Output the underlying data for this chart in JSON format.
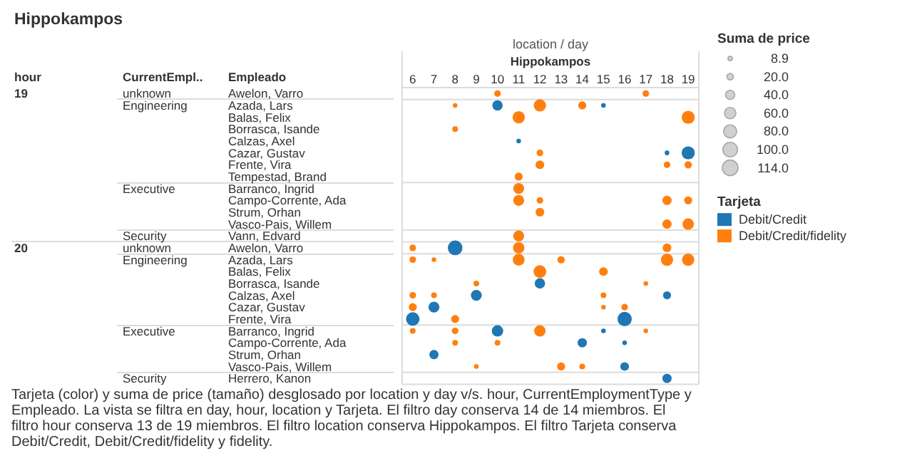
{
  "chart_data": {
    "type": "bubble",
    "orientation": "horizontal",
    "title": "Hippokampos",
    "xlabel": "location / day",
    "ylabel": "Empleado",
    "categories": [
      "Awelon, Varro",
      "Azada, Lars",
      "Balas, Felix",
      "Borrasca, Isande",
      "Calzas, Axel",
      "Cazar, Gustav",
      "Frente, Vira",
      "Tempestad, Brand",
      "Barranco, Ingrid",
      "Campo-Corrente, Ada",
      "Strum, Orhan",
      "Vasco-Pais, Willem",
      "Vann, Edvard",
      "Awelon, Varro",
      "Azada, Lars",
      "Balas, Felix",
      "Borrasca, Isande",
      "Calzas, Axel",
      "Cazar, Gustav",
      "Frente, Vira",
      "Barranco, Ingrid",
      "Campo-Corrente, Ada",
      "Strum, Orhan",
      "Vasco-Pais, Willem",
      "Herrero, Kanon"
    ],
    "y_categories": [
      "19",
      null,
      null,
      null,
      null,
      null,
      null,
      null,
      null,
      null,
      null,
      null,
      null,
      "20",
      null,
      null,
      null,
      null,
      null,
      null,
      null,
      null,
      null,
      null,
      null
    ],
    "y2_categories": [
      "unknown",
      "Engineering",
      null,
      null,
      null,
      null,
      null,
      null,
      "Executive",
      null,
      null,
      null,
      "Security",
      "unknown",
      "Engineering",
      null,
      null,
      null,
      null,
      null,
      "Executive",
      null,
      null,
      null,
      "Security"
    ],
    "xlim": [
      5.5,
      19.5
    ],
    "xticks": [
      6,
      7,
      8,
      9,
      10,
      11,
      12,
      13,
      14,
      15,
      16,
      17,
      18,
      19
    ],
    "legend": "right",
    "legend_title": "Tarjeta",
    "size_legend": [
      8.9,
      {
        "value": 20,
        "label": "20.0"
      },
      {
        "value": 40,
        "label": "40.0"
      },
      {
        "value": 60,
        "label": "60.0"
      },
      {
        "value": 80,
        "label": "80.0"
      },
      {
        "value": 100,
        "label": "100.0"
      },
      {
        "value": 114,
        "label": "114.0"
      }
    ],
    "annotations": [
      "hour",
      "CurrentEmpl..",
      "Hippokampos",
      "Suma de price",
      "Tarjeta (color) y suma de price (tamaño) desglosado por location y day v/s. hour, CurrentEmploymentType y Empleado. La vista se filtra en day, hour, location y Tarjeta. El filtro day conserva 14 de 14 miembros. El filtro hour conserva 13 de 19 miembros. El filtro location conserva Hippokampos. El filtro Tarjeta conserva Debit/Credit, Debit/Credit/fidelity y fidelity."
    ],
    "series": [
      {
        "name": "Debit/Credit",
        "color": "#1f77b4",
        "values": [
          null,
          10,
          null,
          null,
          11,
          18,
          null,
          null,
          null,
          null,
          null,
          null,
          null,
          8,
          null,
          null,
          12,
          9,
          7,
          6,
          10,
          14,
          7,
          16,
          18
        ],
        "sizes": [
          null,
          50,
          null,
          null,
          10,
          10,
          null,
          null,
          null,
          null,
          null,
          null,
          null,
          100,
          null,
          null,
          50,
          55,
          55,
          85,
          60,
          40,
          40,
          35,
          40
        ]
      },
      {
        "name": "Debit/Credit/fidelity",
        "color": "#ff7f0e",
        "values": [
          10,
          8,
          11,
          8,
          null,
          12,
          12,
          11,
          11,
          11,
          12,
          18,
          11,
          6,
          6,
          12,
          9,
          6,
          6,
          8,
          6,
          8,
          null,
          9,
          null
        ],
        "sizes": [
          20,
          10,
          70,
          15,
          null,
          20,
          35,
          30,
          55,
          55,
          35,
          40,
          55,
          20,
          20,
          75,
          15,
          20,
          30,
          30,
          15,
          15,
          null,
          10,
          null
        ]
      },
      {
        "color": "#1f77b4",
        "values": [
          null,
          15,
          null,
          null,
          null,
          19,
          null,
          null,
          null,
          null,
          null,
          null,
          null,
          null,
          null,
          null,
          null,
          18,
          null,
          16,
          15,
          16,
          null,
          null,
          null
        ],
        "sizes": [
          null,
          10,
          null,
          null,
          null,
          80,
          null,
          null,
          null,
          null,
          null,
          null,
          null,
          null,
          null,
          null,
          null,
          30,
          null,
          95,
          10,
          10,
          null,
          null,
          null
        ]
      },
      {
        "color": "#ff7f0e",
        "values": [
          17,
          12,
          19,
          null,
          null,
          null,
          18,
          null,
          null,
          12,
          null,
          19,
          null,
          11,
          7,
          15,
          17,
          7,
          15,
          null,
          8,
          10,
          null,
          13,
          null
        ],
        "sizes": [
          20,
          70,
          80,
          null,
          null,
          null,
          20,
          null,
          null,
          20,
          null,
          60,
          null,
          60,
          10,
          35,
          10,
          15,
          10,
          null,
          20,
          15,
          null,
          30,
          null
        ]
      },
      {
        "color": "#ff7f0e",
        "values": [
          null,
          14,
          null,
          null,
          null,
          null,
          19,
          null,
          null,
          18,
          null,
          null,
          null,
          18,
          11,
          null,
          null,
          15,
          16,
          null,
          12,
          null,
          null,
          14,
          null
        ],
        "sizes": [
          null,
          30,
          null,
          null,
          null,
          null,
          25,
          null,
          null,
          40,
          null,
          null,
          null,
          35,
          65,
          null,
          null,
          15,
          20,
          null,
          60,
          null,
          null,
          15,
          null
        ]
      },
      {
        "color": "#ff7f0e",
        "values": [
          null,
          null,
          null,
          null,
          null,
          null,
          null,
          null,
          null,
          19,
          null,
          null,
          null,
          null,
          13,
          null,
          null,
          null,
          null,
          null,
          17,
          null,
          null,
          null,
          null
        ],
        "sizes": [
          null,
          null,
          null,
          null,
          null,
          null,
          null,
          null,
          null,
          30,
          null,
          null,
          null,
          null,
          25,
          null,
          null,
          null,
          null,
          null,
          10,
          null,
          null,
          null,
          null
        ]
      },
      {
        "color": "#ff7f0e",
        "values": [
          null,
          null,
          null,
          null,
          null,
          null,
          null,
          null,
          null,
          null,
          null,
          null,
          null,
          null,
          18,
          null,
          null,
          null,
          null,
          null,
          null,
          null,
          null,
          null,
          null
        ],
        "sizes": [
          null,
          null,
          null,
          null,
          null,
          null,
          null,
          null,
          null,
          null,
          null,
          null,
          null,
          null,
          70,
          null,
          null,
          null,
          null,
          null,
          null,
          null,
          null,
          null,
          null
        ]
      },
      {
        "color": "#ff7f0e",
        "values": [
          null,
          null,
          null,
          null,
          null,
          null,
          null,
          null,
          null,
          null,
          null,
          null,
          null,
          null,
          19,
          null,
          null,
          null,
          null,
          null,
          null,
          null,
          null,
          null,
          null
        ],
        "sizes": [
          null,
          null,
          null,
          null,
          null,
          null,
          null,
          null,
          null,
          null,
          null,
          null,
          null,
          null,
          70,
          null,
          null,
          null,
          null,
          null,
          null,
          null,
          null,
          null,
          null
        ]
      }
    ]
  }
}
